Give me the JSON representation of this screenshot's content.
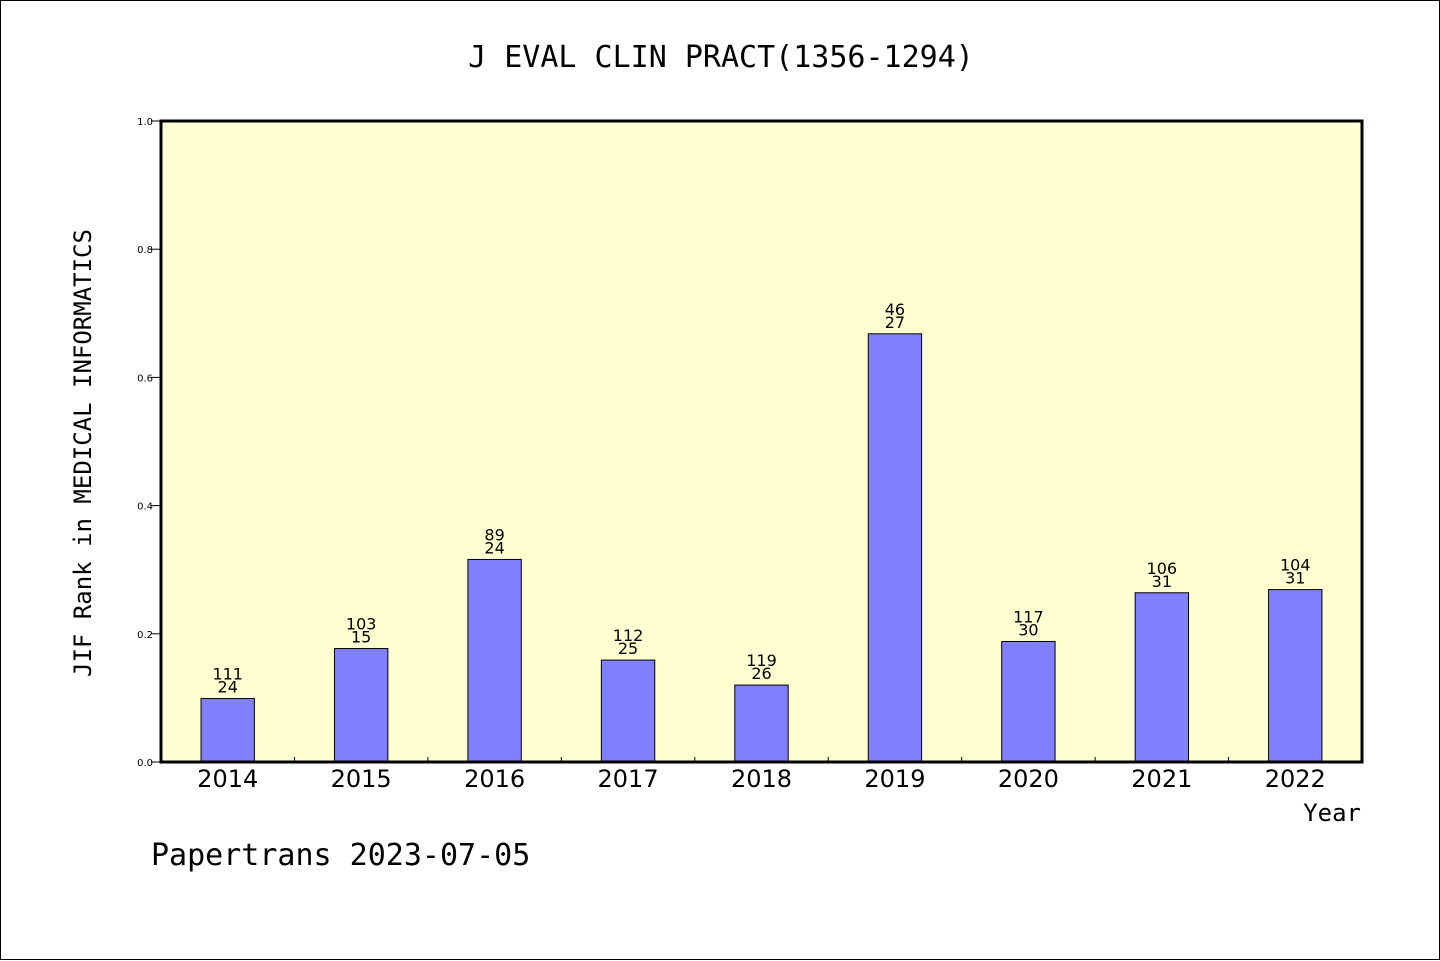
{
  "chart_data": {
    "type": "bar",
    "title": "J EVAL CLIN PRACT(1356-1294)",
    "xlabel": "Year",
    "ylabel": "JIF Rank in MEDICAL INFORMATICS",
    "categories": [
      "2014",
      "2015",
      "2016",
      "2017",
      "2018",
      "2019",
      "2020",
      "2021",
      "2022"
    ],
    "values": [
      0.099,
      0.177,
      0.316,
      0.159,
      0.12,
      0.668,
      0.188,
      0.264,
      0.269
    ],
    "labels_top": [
      "111",
      "103",
      "89",
      "112",
      "119",
      "46",
      "117",
      "106",
      "104"
    ],
    "labels_bottom": [
      "24",
      "15",
      "24",
      "25",
      "26",
      "27",
      "30",
      "31",
      "31"
    ],
    "ylim": [
      0,
      1.0
    ],
    "yticks": [
      "0.0",
      "0.2",
      "0.4",
      "0.6",
      "0.8",
      "1.0"
    ],
    "grid": false,
    "legend": "none",
    "colors": {
      "plot_background": "#FFFFD2",
      "bar_fill": "#8080FF",
      "bar_stroke": "#000000"
    }
  },
  "footer": {
    "text": "Papertrans 2023-07-05"
  }
}
